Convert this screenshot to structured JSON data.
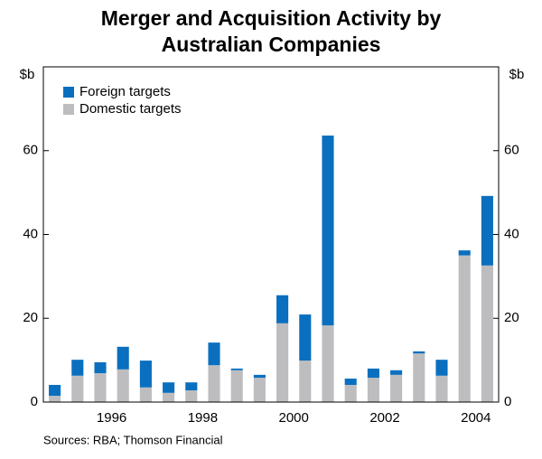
{
  "chart_data": {
    "type": "stacked_bar",
    "title_lines": [
      "Merger and Acquisition Activity by",
      "Australian Companies"
    ],
    "ylabel": "$b",
    "y2label": "$b",
    "source": "Sources: RBA; Thomson Financial",
    "x": [
      1995.25,
      1995.75,
      1996.25,
      1996.75,
      1997.25,
      1997.75,
      1998.25,
      1998.75,
      1999.25,
      1999.75,
      2000.25,
      2000.75,
      2001.25,
      2001.75,
      2002.25,
      2002.75,
      2003.25,
      2003.75,
      2004.25,
      2004.75
    ],
    "xlim": [
      1995,
      2005
    ],
    "xticks": [
      {
        "value": 1996.5,
        "label": "1996"
      },
      {
        "value": 1998.5,
        "label": "1998"
      },
      {
        "value": 2000.5,
        "label": "2000"
      },
      {
        "value": 2002.5,
        "label": "2002"
      },
      {
        "value": 2004.5,
        "label": "2004"
      }
    ],
    "ylim": [
      0,
      80
    ],
    "yticks": [
      0,
      20,
      40,
      60
    ],
    "y2lim": [
      0,
      80
    ],
    "y2ticks": [
      0,
      20,
      40,
      60
    ],
    "legend": "top-left",
    "series": [
      {
        "name": "Foreign targets",
        "color": "#0a6fbf",
        "values": [
          2.6,
          3.8,
          2.6,
          5.4,
          6.4,
          2.5,
          1.9,
          5.4,
          0.4,
          0.7,
          6.7,
          11.0,
          45.3,
          1.5,
          2.2,
          1.1,
          0.5,
          3.8,
          1.2,
          16.6
        ]
      },
      {
        "name": "Domestic targets",
        "color": "#bdbdc0",
        "values": [
          1.5,
          6.3,
          6.9,
          7.8,
          3.5,
          2.2,
          2.8,
          8.8,
          7.6,
          5.8,
          18.8,
          9.9,
          18.3,
          4.1,
          5.8,
          6.5,
          11.6,
          6.3,
          35.0,
          32.6
        ]
      }
    ]
  }
}
